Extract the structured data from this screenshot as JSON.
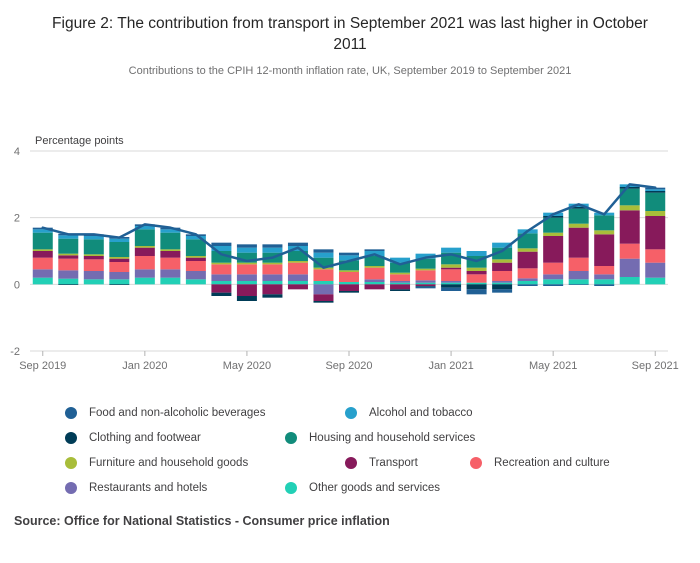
{
  "header": {
    "title": "Figure 2: The contribution from transport in September 2021 was last higher in October 2011",
    "subtitle": "Contributions to the CPIH 12-month inflation rate, UK, September 2019 to September 2021"
  },
  "source": "Source: Office for National Statistics - Consumer price inflation",
  "colors": {
    "grid": "#d9d9d9",
    "tick": "#b3b3b3",
    "axis_text": "#707071",
    "axis_label_text": "#414042",
    "line": "#206095"
  },
  "chart_data": {
    "type": "bar",
    "stacked": true,
    "title": "Figure 2: The contribution from transport in September 2021 was last higher in October 2011",
    "xlabel": "",
    "ylabel": "Percentage points",
    "ylim": [
      -2,
      4
    ],
    "yticks": [
      4,
      2,
      0,
      -2
    ],
    "grid": true,
    "legend_position": "bottom",
    "categories": [
      "Sep 2019",
      "Oct 2019",
      "Nov 2019",
      "Dec 2019",
      "Jan 2020",
      "Feb 2020",
      "Mar 2020",
      "Apr 2020",
      "May 2020",
      "Jun 2020",
      "Jul 2020",
      "Aug 2020",
      "Sep 2020",
      "Oct 2020",
      "Nov 2020",
      "Dec 2020",
      "Jan 2021",
      "Feb 2021",
      "Mar 2021",
      "Apr 2021",
      "May 2021",
      "Jun 2021",
      "Jul 2021",
      "Aug 2021",
      "Sep 2021"
    ],
    "xticks": [
      {
        "index": 0,
        "label": "Sep 2019"
      },
      {
        "index": 4,
        "label": "Jan 2020"
      },
      {
        "index": 8,
        "label": "May 2020"
      },
      {
        "index": 12,
        "label": "Sep 2020"
      },
      {
        "index": 16,
        "label": "Jan 2021"
      },
      {
        "index": 20,
        "label": "May 2021"
      },
      {
        "index": 24,
        "label": "Sep 2021"
      }
    ],
    "series": [
      {
        "name": "Food and non-alcoholic beverages",
        "color": "#206095",
        "values": [
          0.05,
          0.05,
          0.05,
          0.05,
          0.05,
          0.05,
          0.05,
          0.1,
          0.1,
          0.1,
          0.1,
          0.1,
          0.08,
          0.05,
          0.0,
          -0.05,
          -0.1,
          -0.15,
          -0.1,
          -0.05,
          -0.05,
          -0.02,
          -0.05,
          0.0,
          0.05
        ]
      },
      {
        "name": "Alcohol and tobacco",
        "color": "#27a0cc",
        "values": [
          0.1,
          0.1,
          0.1,
          0.1,
          0.1,
          0.1,
          0.1,
          0.15,
          0.15,
          0.15,
          0.15,
          0.15,
          0.15,
          0.15,
          0.15,
          0.15,
          0.15,
          0.15,
          0.15,
          0.12,
          0.1,
          0.1,
          0.08,
          0.08,
          0.05
        ]
      },
      {
        "name": "Clothing and footwear",
        "color": "#003c57",
        "values": [
          0.0,
          -0.02,
          0.0,
          -0.02,
          0.0,
          0.0,
          0.0,
          -0.1,
          -0.15,
          -0.1,
          0.0,
          -0.05,
          -0.05,
          0.0,
          -0.05,
          -0.02,
          -0.1,
          -0.15,
          -0.15,
          0.0,
          0.05,
          0.05,
          0.0,
          0.05,
          0.05
        ]
      },
      {
        "name": "Housing and household services",
        "color": "#118c7b",
        "values": [
          0.5,
          0.45,
          0.45,
          0.45,
          0.5,
          0.5,
          0.5,
          0.35,
          0.3,
          0.3,
          0.3,
          0.3,
          0.3,
          0.3,
          0.3,
          0.3,
          0.35,
          0.35,
          0.35,
          0.45,
          0.45,
          0.45,
          0.45,
          0.5,
          0.55
        ]
      },
      {
        "name": "Furniture and household goods",
        "color": "#a8bd3a",
        "values": [
          0.05,
          0.05,
          0.05,
          0.05,
          0.05,
          0.05,
          0.05,
          0.05,
          0.05,
          0.05,
          0.05,
          0.05,
          0.05,
          0.05,
          0.05,
          0.05,
          0.1,
          0.1,
          0.1,
          0.1,
          0.1,
          0.12,
          0.12,
          0.15,
          0.15
        ]
      },
      {
        "name": "Transport",
        "color": "#871a5b",
        "values": [
          0.2,
          0.1,
          0.1,
          0.1,
          0.25,
          0.2,
          0.1,
          -0.25,
          -0.35,
          -0.3,
          -0.15,
          -0.2,
          -0.2,
          -0.15,
          -0.15,
          -0.05,
          0.05,
          0.1,
          0.25,
          0.5,
          0.8,
          0.9,
          0.95,
          1.0,
          1.0
        ]
      },
      {
        "name": "Recreation and culture",
        "color": "#f66068",
        "values": [
          0.35,
          0.35,
          0.35,
          0.3,
          0.4,
          0.35,
          0.3,
          0.3,
          0.3,
          0.3,
          0.35,
          0.35,
          0.3,
          0.35,
          0.2,
          0.3,
          0.35,
          0.25,
          0.3,
          0.3,
          0.35,
          0.4,
          0.25,
          0.45,
          0.4
        ]
      },
      {
        "name": "Restaurants and hotels",
        "color": "#746cb1",
        "values": [
          0.25,
          0.25,
          0.25,
          0.22,
          0.25,
          0.25,
          0.25,
          0.2,
          0.2,
          0.2,
          0.2,
          -0.3,
          0.0,
          0.08,
          0.05,
          0.07,
          0.05,
          0.0,
          0.05,
          0.08,
          0.15,
          0.25,
          0.15,
          0.55,
          0.45
        ]
      },
      {
        "name": "Other goods and services",
        "color": "#22d0b6",
        "values": [
          0.2,
          0.17,
          0.15,
          0.15,
          0.2,
          0.2,
          0.15,
          0.1,
          0.1,
          0.1,
          0.1,
          0.1,
          0.07,
          0.07,
          0.05,
          0.05,
          0.05,
          0.05,
          0.05,
          0.1,
          0.15,
          0.15,
          0.15,
          0.22,
          0.2
        ]
      }
    ],
    "stack_order": [
      8,
      7,
      6,
      5,
      4,
      3,
      2,
      1,
      0
    ],
    "line_series": {
      "name": "CPIH 12-month inflation rate",
      "color": "#206095",
      "values": [
        1.7,
        1.5,
        1.5,
        1.4,
        1.8,
        1.7,
        1.5,
        0.9,
        0.7,
        0.8,
        1.1,
        0.5,
        0.7,
        0.9,
        0.6,
        0.8,
        0.9,
        0.7,
        1.0,
        1.6,
        2.1,
        2.4,
        2.1,
        3.0,
        2.9
      ]
    }
  },
  "legend": {
    "rows": [
      [
        0,
        1
      ],
      [
        2,
        3
      ],
      [
        4,
        5,
        6
      ],
      [
        7,
        8
      ]
    ]
  }
}
